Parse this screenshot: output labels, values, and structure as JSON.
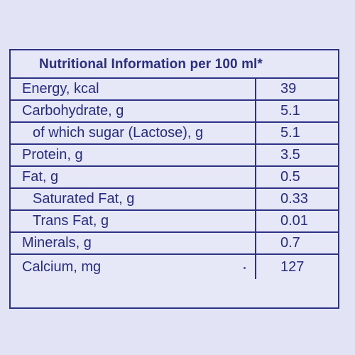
{
  "title": "Nutritional Information per 100 ml*",
  "rows": [
    {
      "label": "Energy, kcal",
      "value": "39"
    },
    {
      "label": "Carbohydrate, g",
      "value": "5.1"
    },
    {
      "label": "of which sugar (Lactose), g",
      "value": "5.1"
    },
    {
      "label": "Protein, g",
      "value": "3.5"
    },
    {
      "label": "Fat, g",
      "value": "0.5"
    },
    {
      "label": "Saturated Fat, g",
      "value": "0.33"
    },
    {
      "label": "Trans Fat, g",
      "value": "0.01"
    },
    {
      "label": "Minerals, g",
      "value": "0.7"
    },
    {
      "label": "Calcium, mg",
      "value": "127"
    }
  ],
  "colors": {
    "text": "#272c80",
    "border": "#2e3284",
    "background": "#e2e3f4"
  }
}
